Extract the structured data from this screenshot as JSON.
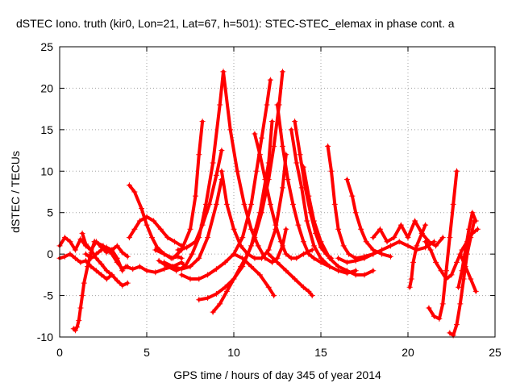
{
  "chart_data": {
    "type": "scatter",
    "title": "dSTEC Iono. truth (kir0, Lon=21, Lat=67, h=501): STEC-STEC_elemax in phase cont. a",
    "xlabel": "GPS time / hours of day 345 of year 2014",
    "ylabel": "dSTEC  / TECUs",
    "xlim": [
      0,
      25
    ],
    "ylim": [
      -10,
      25
    ],
    "x_ticks": [
      "0",
      "5",
      "10",
      "15",
      "20",
      "25"
    ],
    "y_ticks": [
      "-10",
      "-5",
      "0",
      "5",
      "10",
      "15",
      "20",
      "25"
    ],
    "grid": true,
    "marker": "+",
    "color": "#ff0000",
    "series": [
      {
        "x": [
          0.0,
          0.3,
          0.6,
          0.9,
          1.2,
          1.5,
          1.8,
          2.1,
          2.4,
          2.7,
          3.0,
          3.3,
          3.6,
          3.9
        ],
        "y": [
          1.0,
          2.0,
          1.5,
          0.5,
          1.8,
          1.0,
          0.5,
          1.5,
          0.8,
          0.2,
          0.5,
          1.0,
          0.2,
          -0.3
        ]
      },
      {
        "x": [
          0.0,
          0.3,
          0.6,
          0.9,
          1.2,
          1.5,
          1.8,
          2.1,
          2.4,
          2.7,
          3.0
        ],
        "y": [
          -0.5,
          -0.3,
          0.0,
          -0.5,
          -1.0,
          -0.8,
          -1.5,
          -2.0,
          -2.5,
          -3.0,
          -2.5
        ]
      },
      {
        "x": [
          0.8,
          0.9,
          1.0,
          1.1,
          1.2,
          1.3,
          1.4,
          1.6,
          1.8,
          2.0
        ],
        "y": [
          -9.0,
          -9.2,
          -8.8,
          -8.0,
          -6.5,
          -5.0,
          -3.5,
          -1.5,
          0.2,
          1.5
        ]
      },
      {
        "x": [
          1.3,
          1.5,
          1.8,
          2.1,
          2.4,
          2.7,
          3.0,
          3.3,
          3.6,
          3.9
        ],
        "y": [
          2.5,
          1.2,
          0.5,
          -0.5,
          -1.2,
          -2.0,
          -2.5,
          -3.2,
          -3.8,
          -3.5
        ]
      },
      {
        "x": [
          1.5,
          1.8,
          2.1,
          2.4,
          2.7,
          3.0,
          3.3,
          3.6
        ],
        "y": [
          0.0,
          -0.5,
          0.0,
          0.5,
          0.8,
          0.5,
          -0.5,
          -2.0
        ]
      },
      {
        "x": [
          2.0,
          2.5,
          3.0,
          3.3,
          3.6,
          3.9
        ],
        "y": [
          1.5,
          1.0,
          0.0,
          -1.0,
          -1.8,
          -1.5
        ]
      },
      {
        "x": [
          3.8,
          4.2,
          4.6,
          5.0,
          5.5,
          6.0,
          6.5,
          7.0,
          7.2
        ],
        "y": [
          -1.5,
          -1.8,
          -1.5,
          -2.0,
          -2.2,
          -1.8,
          -1.5,
          -1.0,
          -1.5
        ]
      },
      {
        "x": [
          4.0,
          4.3,
          4.7,
          5.0,
          5.3,
          5.6,
          6.0,
          6.4,
          6.8,
          7.0
        ],
        "y": [
          8.3,
          7.5,
          5.5,
          3.5,
          2.0,
          0.8,
          0.0,
          -0.5,
          -0.3,
          -0.5
        ]
      },
      {
        "x": [
          4.0,
          4.3,
          4.6,
          5.0,
          5.4,
          5.8,
          6.2,
          6.6,
          7.0
        ],
        "y": [
          2.0,
          3.0,
          4.0,
          4.5,
          4.0,
          3.0,
          2.0,
          1.5,
          1.0
        ]
      },
      {
        "x": [
          5.5,
          6.0,
          6.5,
          7.0,
          7.5,
          7.8,
          8.0,
          8.2
        ],
        "y": [
          0.5,
          0.0,
          -0.5,
          0.5,
          3.0,
          7.0,
          12.0,
          16.0
        ]
      },
      {
        "x": [
          5.7,
          6.2,
          6.7,
          7.2,
          7.6,
          8.0,
          8.4,
          8.8,
          9.2,
          9.4
        ],
        "y": [
          -0.8,
          -1.5,
          -2.0,
          -1.5,
          0.0,
          2.0,
          6.0,
          11.0,
          18.0,
          22.0
        ]
      },
      {
        "x": [
          6.0,
          6.5,
          7.0,
          7.5,
          8.0,
          8.5,
          9.0,
          9.3
        ],
        "y": [
          -1.0,
          -1.5,
          -1.8,
          -1.5,
          -0.5,
          2.0,
          6.0,
          9.0
        ]
      },
      {
        "x": [
          6.8,
          7.3,
          7.8,
          8.2,
          8.6,
          9.0,
          9.3
        ],
        "y": [
          0.5,
          0.8,
          1.5,
          3.5,
          6.0,
          9.5,
          12.5
        ]
      },
      {
        "x": [
          8.0,
          8.5,
          9.0,
          9.5,
          10.0,
          10.5,
          11.0,
          11.5,
          12.0,
          12.2
        ],
        "y": [
          -5.5,
          -5.3,
          -4.8,
          -4.0,
          -3.0,
          -1.5,
          1.0,
          5.0,
          11.0,
          16.0
        ]
      },
      {
        "x": [
          8.8,
          9.2,
          9.6,
          10.0,
          10.4,
          10.8,
          11.2,
          11.6,
          12.0,
          12.3,
          12.6,
          12.8
        ],
        "y": [
          -7.0,
          -6.0,
          -4.5,
          -3.0,
          -1.5,
          0.0,
          2.0,
          5.0,
          9.0,
          13.0,
          18.0,
          22.0
        ]
      },
      {
        "x": [
          7.0,
          7.5,
          8.0,
          8.5,
          9.0,
          9.5,
          10.0,
          10.5,
          11.0,
          11.3,
          11.6,
          11.9,
          12.1
        ],
        "y": [
          -2.5,
          -3.0,
          -3.0,
          -2.5,
          -1.8,
          -1.0,
          0.0,
          2.0,
          6.0,
          10.0,
          14.0,
          18.0,
          21.0
        ]
      },
      {
        "x": [
          9.3,
          9.6,
          10.0,
          10.4,
          10.8,
          11.2,
          11.6,
          12.0,
          12.4,
          12.8,
          13.0
        ],
        "y": [
          10.0,
          6.0,
          3.0,
          1.0,
          0.0,
          -0.5,
          -0.5,
          0.5,
          3.0,
          8.0,
          12.0
        ]
      },
      {
        "x": [
          9.4,
          9.8,
          10.2,
          10.6,
          11.0,
          11.4,
          11.8,
          12.2,
          12.5,
          12.8,
          13.0
        ],
        "y": [
          22.0,
          15.0,
          10.0,
          6.0,
          3.0,
          1.0,
          -0.5,
          -1.0,
          -0.5,
          1.0,
          3.0
        ]
      },
      {
        "x": [
          11.2,
          11.5,
          11.8,
          12.1,
          12.4,
          12.7,
          13.0,
          13.3,
          13.6,
          14.0,
          14.5
        ],
        "y": [
          14.5,
          12.0,
          9.0,
          6.0,
          3.5,
          1.5,
          0.0,
          -0.5,
          -0.5,
          0.0,
          0.5
        ]
      },
      {
        "x": [
          10.0,
          10.5,
          11.0,
          11.5,
          12.0,
          12.3
        ],
        "y": [
          0.0,
          -0.5,
          -1.5,
          -2.5,
          -4.0,
          -5.0
        ]
      },
      {
        "x": [
          12.0,
          12.5,
          13.0,
          13.5,
          14.0,
          14.3,
          14.5
        ],
        "y": [
          0.0,
          -1.0,
          -2.0,
          -3.0,
          -4.0,
          -4.5,
          -5.0
        ]
      },
      {
        "x": [
          12.5,
          12.8,
          13.1,
          13.4,
          13.7,
          14.0,
          14.3,
          14.6,
          15.0,
          15.5
        ],
        "y": [
          18.0,
          13.0,
          9.0,
          6.0,
          3.5,
          1.5,
          0.0,
          -0.5,
          -1.0,
          -1.5
        ]
      },
      {
        "x": [
          13.5,
          13.8,
          14.1,
          14.4,
          14.7,
          15.0,
          15.3,
          15.6
        ],
        "y": [
          16.0,
          12.0,
          8.0,
          5.0,
          2.5,
          0.8,
          0.0,
          -0.5
        ]
      },
      {
        "x": [
          13.3,
          13.6,
          13.9,
          14.2,
          14.6,
          15.0,
          15.5,
          16.0,
          16.5,
          17.0
        ],
        "y": [
          15.0,
          11.0,
          8.0,
          4.0,
          1.0,
          -0.5,
          -1.5,
          -2.0,
          -2.3,
          -2.0
        ]
      },
      {
        "x": [
          14.0,
          14.3,
          14.6,
          15.0,
          15.5,
          16.0,
          16.5,
          17.0,
          17.5,
          18.0
        ],
        "y": [
          10.5,
          7.0,
          4.0,
          1.5,
          -0.5,
          -1.5,
          -2.0,
          -2.5,
          -2.5,
          -2.0
        ]
      },
      {
        "x": [
          15.4,
          15.6,
          15.8,
          16.0,
          16.3,
          16.6,
          17.0,
          17.5,
          18.0
        ],
        "y": [
          13.0,
          10.0,
          6.0,
          3.0,
          1.0,
          0.0,
          -0.5,
          -0.3,
          0.0
        ]
      },
      {
        "x": [
          16.5,
          16.8,
          17.0,
          17.3,
          17.6,
          18.0,
          18.5,
          19.0
        ],
        "y": [
          9.0,
          7.0,
          5.0,
          3.0,
          1.5,
          0.5,
          0.0,
          -0.3
        ]
      },
      {
        "x": [
          16.0,
          16.5,
          17.0,
          17.5,
          18.0,
          18.5,
          19.0,
          19.5,
          20.0,
          20.5,
          21.0,
          21.5
        ],
        "y": [
          -0.5,
          -1.0,
          -0.8,
          -0.5,
          0.0,
          0.5,
          1.0,
          1.5,
          1.0,
          0.5,
          0.8,
          1.5
        ]
      },
      {
        "x": [
          18.0,
          18.4,
          18.8,
          19.2,
          19.6,
          20.0,
          20.4,
          20.8,
          21.2,
          21.6,
          22.0
        ],
        "y": [
          2.0,
          3.0,
          1.5,
          2.0,
          3.5,
          2.0,
          4.0,
          2.5,
          1.5,
          1.0,
          2.0
        ]
      },
      {
        "x": [
          20.1,
          20.2,
          20.3,
          20.5,
          20.8,
          21.0
        ],
        "y": [
          -4.0,
          -3.0,
          -1.0,
          1.0,
          2.5,
          3.5
        ]
      },
      {
        "x": [
          21.2,
          21.5,
          21.8,
          22.0,
          22.2,
          22.4,
          22.6,
          22.8
        ],
        "y": [
          -6.5,
          -7.5,
          -7.8,
          -6.0,
          -2.0,
          2.0,
          6.0,
          10.0
        ]
      },
      {
        "x": [
          21.0,
          21.3,
          21.6,
          21.9,
          22.2,
          22.5,
          22.8,
          23.1,
          23.4,
          23.7,
          24.0
        ],
        "y": [
          1.5,
          0.5,
          -1.0,
          -2.0,
          -3.0,
          -2.5,
          -1.0,
          0.5,
          1.5,
          2.5,
          3.0
        ]
      },
      {
        "x": [
          22.4,
          22.6,
          22.8,
          23.0,
          23.2,
          23.4,
          23.6,
          23.8
        ],
        "y": [
          -9.5,
          -9.8,
          -8.5,
          -6.0,
          -3.0,
          0.0,
          2.0,
          4.0
        ]
      },
      {
        "x": [
          22.9,
          23.1,
          23.3,
          23.5,
          23.7,
          23.9
        ],
        "y": [
          -4.0,
          -2.0,
          0.5,
          3.0,
          5.0,
          4.0
        ]
      },
      {
        "x": [
          23.0,
          23.3,
          23.6,
          23.9
        ],
        "y": [
          0.0,
          -1.5,
          -3.0,
          -4.5
        ]
      }
    ]
  }
}
